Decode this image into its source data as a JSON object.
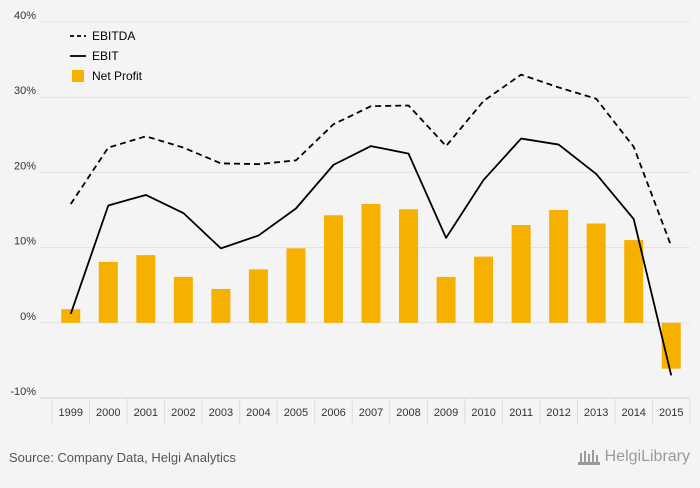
{
  "chart_data": {
    "type": "bar",
    "categories": [
      "1999",
      "2000",
      "2001",
      "2002",
      "2003",
      "2004",
      "2005",
      "2006",
      "2007",
      "2008",
      "2009",
      "2010",
      "2011",
      "2012",
      "2013",
      "2014",
      "2015"
    ],
    "series": [
      {
        "name": "EBITDA",
        "kind": "line",
        "style": "dashed",
        "values": [
          15.8,
          23.3,
          24.8,
          23.3,
          21.2,
          21.1,
          21.6,
          26.4,
          28.8,
          28.9,
          23.5,
          29.5,
          33.0,
          31.3,
          29.8,
          23.4,
          10.2
        ]
      },
      {
        "name": "EBIT",
        "kind": "line",
        "style": "solid",
        "values": [
          1.2,
          15.6,
          17.0,
          14.6,
          9.9,
          11.6,
          15.2,
          21.0,
          23.5,
          22.5,
          11.3,
          19.0,
          24.5,
          23.7,
          19.8,
          13.8,
          -7.0
        ]
      },
      {
        "name": "Net Profit",
        "kind": "bar",
        "values": [
          1.8,
          8.1,
          9.0,
          6.1,
          4.5,
          7.1,
          9.9,
          14.3,
          15.8,
          15.1,
          6.1,
          8.8,
          13.0,
          15.0,
          13.2,
          11.0,
          -6.1
        ]
      }
    ],
    "y_ticks": [
      "-10%",
      "0%",
      "10%",
      "20%",
      "30%",
      "40%"
    ],
    "ylim": [
      -10,
      40
    ],
    "legend_position": "top-left",
    "grid": true
  },
  "colors": {
    "bar": "#f5b000",
    "line": "#000000",
    "grid": "#e2e2e2",
    "background": "#f4f4f4"
  },
  "footer": {
    "source": "Source: Company Data, Helgi Analytics",
    "brand": "HelgiLibrary"
  }
}
